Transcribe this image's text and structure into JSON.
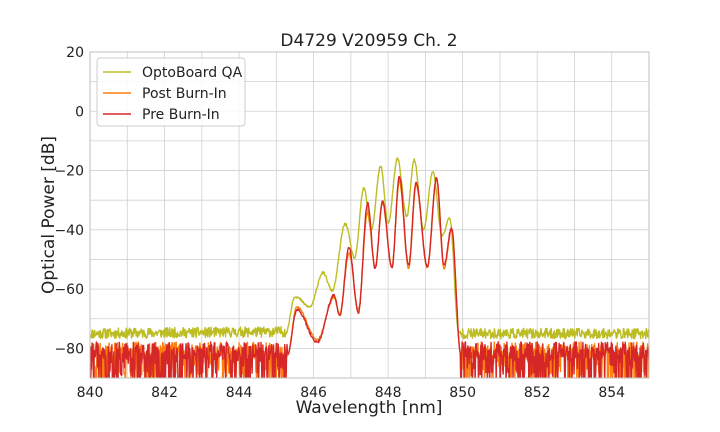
{
  "chart_data": {
    "type": "line",
    "title": "D4729 V20959 Ch. 2",
    "xlabel": "Wavelength [nm]",
    "ylabel": "Optical Power [dB]",
    "xlim": [
      840,
      855
    ],
    "ylim": [
      -90,
      20
    ],
    "xticks": [
      840,
      842,
      844,
      846,
      848,
      850,
      852,
      854
    ],
    "xtick_labels": [
      "840",
      "842",
      "844",
      "846",
      "848",
      "850",
      "852",
      "854"
    ],
    "yticks": [
      20,
      0,
      -20,
      -40,
      -60,
      -80
    ],
    "ytick_labels": [
      "20",
      "0",
      "−20",
      "−40",
      "−60",
      "−80"
    ],
    "grid": true,
    "legend_position": "top-left",
    "series": [
      {
        "name": "OptoBoard QA",
        "color": "#bcbd22",
        "noise_floor": -75,
        "peaks": [
          {
            "x": 845.5,
            "y": -62.5
          },
          {
            "x": 846.25,
            "y": -54.5
          },
          {
            "x": 846.85,
            "y": -38.0
          },
          {
            "x": 847.35,
            "y": -26.0
          },
          {
            "x": 847.8,
            "y": -18.5
          },
          {
            "x": 848.25,
            "y": -16.0
          },
          {
            "x": 848.7,
            "y": -16.5
          },
          {
            "x": 849.2,
            "y": -20.5
          },
          {
            "x": 849.65,
            "y": -36.0
          }
        ],
        "valleys": [
          {
            "x": 845.9,
            "y": -66.0
          },
          {
            "x": 846.5,
            "y": -60.5
          },
          {
            "x": 847.1,
            "y": -49.5
          },
          {
            "x": 847.55,
            "y": -40.0
          },
          {
            "x": 848.0,
            "y": -38.0
          },
          {
            "x": 848.5,
            "y": -35.5
          },
          {
            "x": 848.95,
            "y": -40.0
          },
          {
            "x": 849.45,
            "y": -42.0
          }
        ]
      },
      {
        "name": "Post Burn-In",
        "color": "#ff7f0e",
        "noise_floor": -82,
        "peaks": [
          {
            "x": 845.55,
            "y": -66.0
          },
          {
            "x": 846.55,
            "y": -63.0
          },
          {
            "x": 846.95,
            "y": -48.0
          },
          {
            "x": 847.45,
            "y": -34.0
          },
          {
            "x": 847.85,
            "y": -31.0
          },
          {
            "x": 848.3,
            "y": -23.5
          },
          {
            "x": 848.75,
            "y": -25.0
          },
          {
            "x": 849.3,
            "y": -23.0
          },
          {
            "x": 849.7,
            "y": -40.0
          }
        ],
        "valleys": [
          {
            "x": 846.1,
            "y": -77.0
          },
          {
            "x": 846.7,
            "y": -68.5
          },
          {
            "x": 847.2,
            "y": -67.0
          },
          {
            "x": 847.65,
            "y": -52.5
          },
          {
            "x": 848.1,
            "y": -52.5
          },
          {
            "x": 848.55,
            "y": -53.0
          },
          {
            "x": 849.05,
            "y": -52.5
          },
          {
            "x": 849.5,
            "y": -53.0
          }
        ]
      },
      {
        "name": "Pre Burn-In",
        "color": "#d62728",
        "noise_floor": -82,
        "peaks": [
          {
            "x": 845.55,
            "y": -67.0
          },
          {
            "x": 846.55,
            "y": -62.0
          },
          {
            "x": 846.95,
            "y": -46.0
          },
          {
            "x": 847.45,
            "y": -31.0
          },
          {
            "x": 847.85,
            "y": -30.5
          },
          {
            "x": 848.3,
            "y": -22.0
          },
          {
            "x": 848.75,
            "y": -24.0
          },
          {
            "x": 849.3,
            "y": -22.5
          },
          {
            "x": 849.7,
            "y": -39.5
          }
        ],
        "valleys": [
          {
            "x": 846.1,
            "y": -78.0
          },
          {
            "x": 846.7,
            "y": -69.0
          },
          {
            "x": 847.2,
            "y": -68.0
          },
          {
            "x": 847.65,
            "y": -53.0
          },
          {
            "x": 848.1,
            "y": -53.0
          },
          {
            "x": 848.55,
            "y": -52.0
          },
          {
            "x": 849.05,
            "y": -52.5
          },
          {
            "x": 849.5,
            "y": -52.0
          }
        ]
      }
    ]
  }
}
